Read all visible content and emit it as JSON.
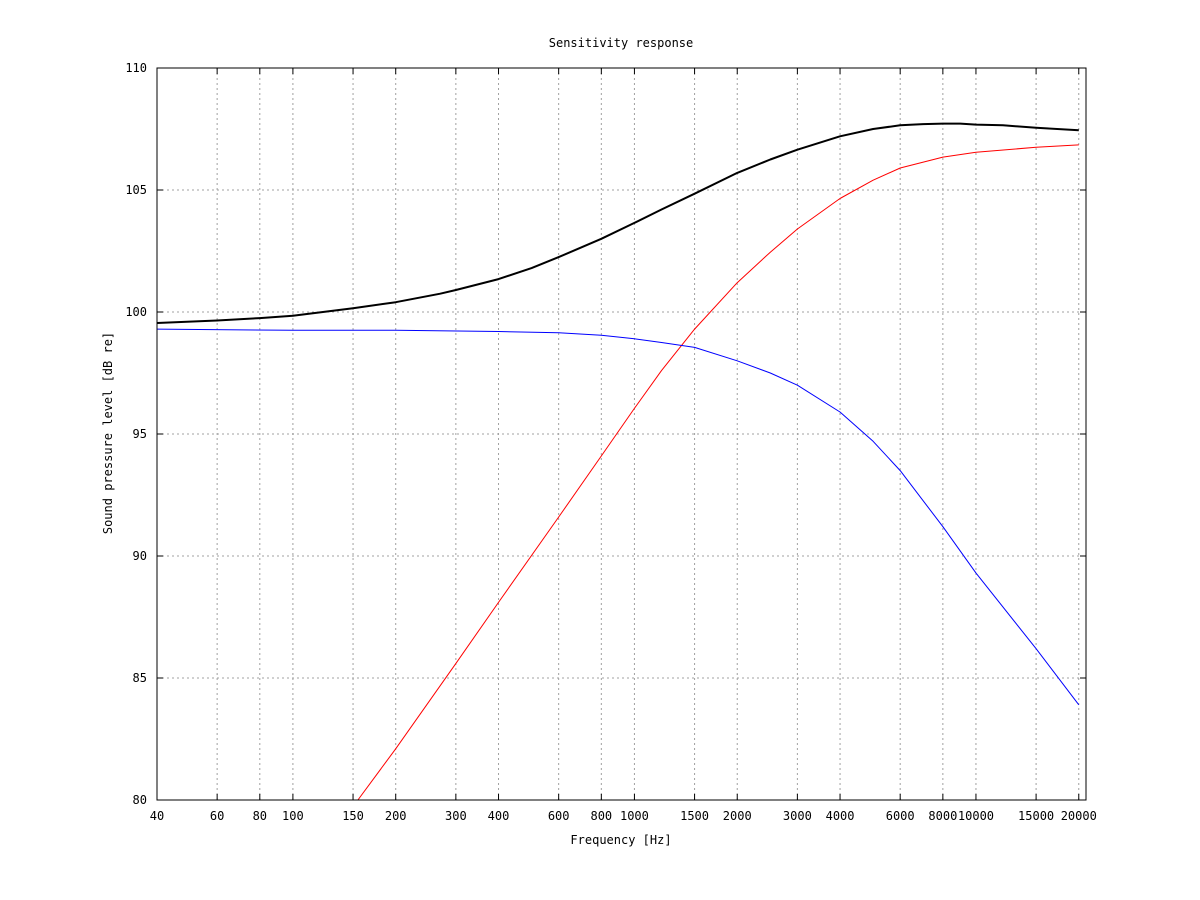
{
  "chart_data": {
    "type": "line",
    "title": "Sensitivity response",
    "xlabel": "Frequency [Hz]",
    "ylabel": "Sound pressure level [dB re]",
    "xscale": "log",
    "xlim": [
      40,
      21000
    ],
    "ylim": [
      80,
      110
    ],
    "grid": true,
    "x_ticks": [
      40,
      60,
      80,
      100,
      150,
      200,
      300,
      400,
      600,
      800,
      1000,
      1500,
      2000,
      3000,
      4000,
      6000,
      8000,
      10000,
      15000,
      20000
    ],
    "x_tick_labels": [
      "40",
      "60",
      "80",
      "100",
      "150",
      "200",
      "300",
      "400",
      "600",
      "800",
      "1000",
      "1500",
      "2000",
      "3000",
      "4000",
      "6000",
      "8000",
      "10000",
      "15000",
      "20000"
    ],
    "y_ticks": [
      80,
      85,
      90,
      95,
      100,
      105,
      110
    ],
    "y_tick_labels": [
      "80",
      "85",
      "90",
      "95",
      "100",
      "105",
      "110"
    ],
    "series": [
      {
        "color": "#000000",
        "x": [
          40,
          60,
          80,
          100,
          150,
          200,
          270,
          300,
          400,
          500,
          600,
          700,
          800,
          1000,
          1200,
          1500,
          2000,
          2500,
          3000,
          4000,
          5000,
          6000,
          7000,
          8000,
          9000,
          10000,
          12000,
          15000,
          20000
        ],
        "values": [
          99.55,
          99.65,
          99.75,
          99.85,
          100.15,
          100.4,
          100.75,
          100.9,
          101.35,
          101.8,
          102.25,
          102.65,
          103.0,
          103.65,
          104.2,
          104.85,
          105.7,
          106.25,
          106.65,
          107.2,
          107.5,
          107.65,
          107.7,
          107.72,
          107.72,
          107.68,
          107.65,
          107.55,
          107.45
        ]
      },
      {
        "color": "#ff0000",
        "x": [
          155,
          200,
          300,
          400,
          600,
          800,
          1000,
          1200,
          1500,
          2000,
          2500,
          3000,
          4000,
          5000,
          6000,
          8000,
          10000,
          15000,
          20000
        ],
        "values": [
          80.0,
          82.1,
          85.6,
          88.1,
          91.6,
          94.1,
          96.05,
          97.6,
          99.3,
          101.2,
          102.45,
          103.4,
          104.65,
          105.4,
          105.9,
          106.35,
          106.55,
          106.75,
          106.85
        ]
      },
      {
        "color": "#0000ff",
        "x": [
          40,
          100,
          200,
          400,
          600,
          800,
          1000,
          1200,
          1500,
          2000,
          2500,
          3000,
          4000,
          5000,
          6000,
          8000,
          10000,
          15000,
          20000
        ],
        "values": [
          99.3,
          99.25,
          99.25,
          99.2,
          99.15,
          99.05,
          98.9,
          98.75,
          98.55,
          98.0,
          97.5,
          97.0,
          95.9,
          94.7,
          93.5,
          91.2,
          89.3,
          86.2,
          83.9
        ]
      }
    ]
  }
}
